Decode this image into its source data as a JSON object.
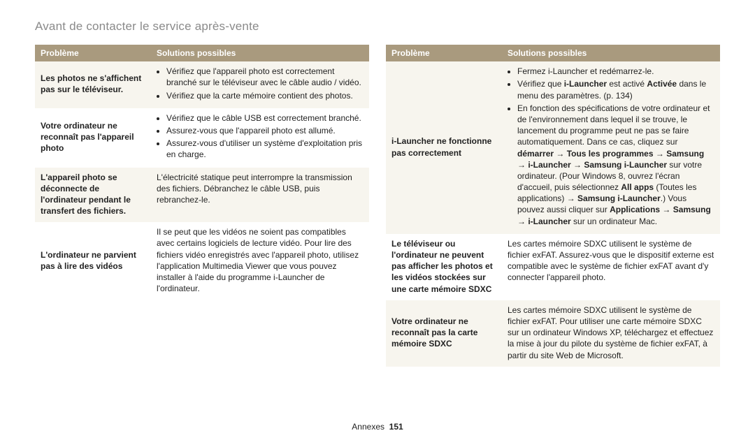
{
  "heading": "Avant de contacter le service après-vente",
  "headers": {
    "problem": "Problème",
    "solutions": "Solutions possibles"
  },
  "left_rows": [
    {
      "problem": "Les photos ne s'affichent pas sur le téléviseur.",
      "solutions_html": "<ul class='sol'><li>Vérifiez que l'appareil photo est correctement branché sur le téléviseur avec le câble audio / vidéo.</li><li>Vérifiez que la carte mémoire contient des photos.</li></ul>"
    },
    {
      "problem": "Votre ordinateur ne reconnaît pas l'appareil photo",
      "solutions_html": "<ul class='sol'><li>Vérifiez que le câble USB est correctement branché.</li><li>Assurez-vous que l'appareil photo est allumé.</li><li>Assurez-vous d'utiliser un système d'exploitation pris en charge.</li></ul>"
    },
    {
      "problem": "L'appareil photo se déconnecte de l'ordinateur pendant le transfert des fichiers.",
      "solutions_html": "L'électricité statique peut interrompre la transmission des fichiers. Débranchez le câble USB, puis rebranchez-le."
    },
    {
      "problem": "L'ordinateur ne parvient pas à lire des vidéos",
      "solutions_html": "Il se peut que les vidéos ne soient pas compatibles avec certains logiciels de lecture vidéo. Pour lire des fichiers vidéo enregistrés avec l'appareil photo, utilisez l'application Multimedia Viewer que vous pouvez installer à l'aide du programme i-Launcher de l'ordinateur."
    }
  ],
  "right_rows": [
    {
      "problem": "i-Launcher ne fonctionne pas correctement",
      "solutions_html": "<ul class='sol'><li>Fermez i-Launcher et redémarrez-le.</li><li>Vérifiez que <b>i-Launcher</b> est activé <b>Activée</b> dans le menu des paramètres. (p. 134)</li><li>En fonction des spécifications de votre ordinateur et de l'environnement dans lequel il se trouve, le lancement du programme peut ne pas se faire automatiquement. Dans ce cas, cliquez sur <b>démarrer</b> → <b>Tous les programmes</b> → <b>Samsung</b> → <b>i-Launcher</b> → <b>Samsung i-Launcher</b> sur votre ordinateur. (Pour Windows 8, ouvrez l'écran d'accueil, puis sélectionnez <b>All apps</b> (Toutes les applications) → <b>Samsung i-Launcher</b>.) Vous pouvez aussi cliquer sur <b>Applications</b> → <b>Samsung</b> → <b>i-Launcher</b> sur un ordinateur Mac.</li></ul>"
    },
    {
      "problem": "Le téléviseur ou l'ordinateur ne peuvent pas afficher les photos et les vidéos stockées sur une carte mémoire SDXC",
      "solutions_html": "Les cartes mémoire SDXC utilisent le système de fichier exFAT. Assurez-vous que le dispositif externe est compatible avec le système de fichier exFAT avant d'y connecter l'appareil photo."
    },
    {
      "problem": "Votre ordinateur ne reconnaît pas la carte mémoire SDXC",
      "solutions_html": "Les cartes mémoire SDXC utilisent le système de fichier exFAT. Pour utiliser une carte mémoire SDXC sur un ordinateur Windows XP, téléchargez et effectuez la mise à jour du pilote du système de fichier exFAT, à partir du site Web de Microsoft."
    }
  ],
  "footer_label": "Annexes",
  "footer_page": "151",
  "colors": {
    "header_bg": "#a99a7e",
    "header_text": "#ffffff",
    "row_alt_bg": "#f7f5ee",
    "heading_color": "#8a8a8a",
    "text_color": "#222222"
  }
}
